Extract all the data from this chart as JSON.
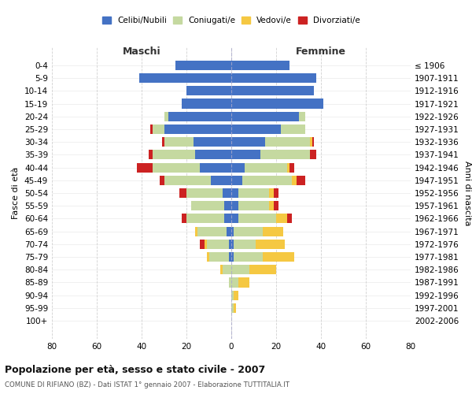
{
  "age_groups": [
    "0-4",
    "5-9",
    "10-14",
    "15-19",
    "20-24",
    "25-29",
    "30-34",
    "35-39",
    "40-44",
    "45-49",
    "50-54",
    "55-59",
    "60-64",
    "65-69",
    "70-74",
    "75-79",
    "80-84",
    "85-89",
    "90-94",
    "95-99",
    "100+"
  ],
  "birth_years": [
    "2002-2006",
    "1997-2001",
    "1992-1996",
    "1987-1991",
    "1982-1986",
    "1977-1981",
    "1972-1976",
    "1967-1971",
    "1962-1966",
    "1957-1961",
    "1952-1956",
    "1947-1951",
    "1942-1946",
    "1937-1941",
    "1932-1936",
    "1927-1931",
    "1922-1926",
    "1917-1921",
    "1912-1916",
    "1907-1911",
    "≤ 1906"
  ],
  "maschi": {
    "celibi": [
      25,
      41,
      20,
      22,
      28,
      30,
      17,
      16,
      14,
      9,
      4,
      3,
      3,
      2,
      1,
      1,
      0,
      0,
      0,
      0,
      0
    ],
    "coniugati": [
      0,
      0,
      0,
      0,
      2,
      5,
      13,
      19,
      21,
      21,
      16,
      15,
      17,
      13,
      10,
      9,
      4,
      1,
      0,
      0,
      0
    ],
    "vedovi": [
      0,
      0,
      0,
      0,
      0,
      0,
      0,
      0,
      0,
      0,
      0,
      0,
      0,
      1,
      1,
      1,
      1,
      0,
      0,
      0,
      0
    ],
    "divorziati": [
      0,
      0,
      0,
      0,
      0,
      1,
      1,
      2,
      7,
      2,
      3,
      0,
      2,
      0,
      2,
      0,
      0,
      0,
      0,
      0,
      0
    ]
  },
  "femmine": {
    "nubili": [
      26,
      38,
      37,
      41,
      30,
      22,
      15,
      13,
      6,
      5,
      3,
      3,
      3,
      1,
      1,
      1,
      0,
      0,
      0,
      0,
      0
    ],
    "coniugate": [
      0,
      0,
      0,
      0,
      3,
      11,
      20,
      22,
      19,
      22,
      14,
      14,
      17,
      13,
      10,
      13,
      8,
      3,
      1,
      1,
      0
    ],
    "vedove": [
      0,
      0,
      0,
      0,
      0,
      0,
      1,
      0,
      1,
      2,
      2,
      2,
      5,
      9,
      13,
      14,
      12,
      5,
      2,
      1,
      0
    ],
    "divorziate": [
      0,
      0,
      0,
      0,
      0,
      0,
      1,
      3,
      2,
      4,
      2,
      2,
      2,
      0,
      0,
      0,
      0,
      0,
      0,
      0,
      0
    ]
  },
  "colors": {
    "celibi": "#4472c4",
    "coniugati": "#c5d9a0",
    "vedovi": "#f5c842",
    "divorziati": "#cc2222"
  },
  "xlim": 80,
  "title": "Popolazione per età, sesso e stato civile - 2007",
  "subtitle": "COMUNE DI RIFIANO (BZ) - Dati ISTAT 1° gennaio 2007 - Elaborazione TUTTITALIA.IT",
  "ylabel": "Fasce di età",
  "ylabel_right": "Anni di nascita",
  "xlabel_maschi": "Maschi",
  "xlabel_femmine": "Femmine",
  "legend_labels": [
    "Celibi/Nubili",
    "Coniugati/e",
    "Vedovi/e",
    "Divorziati/e"
  ],
  "background_color": "#ffffff",
  "grid_color": "#cccccc"
}
